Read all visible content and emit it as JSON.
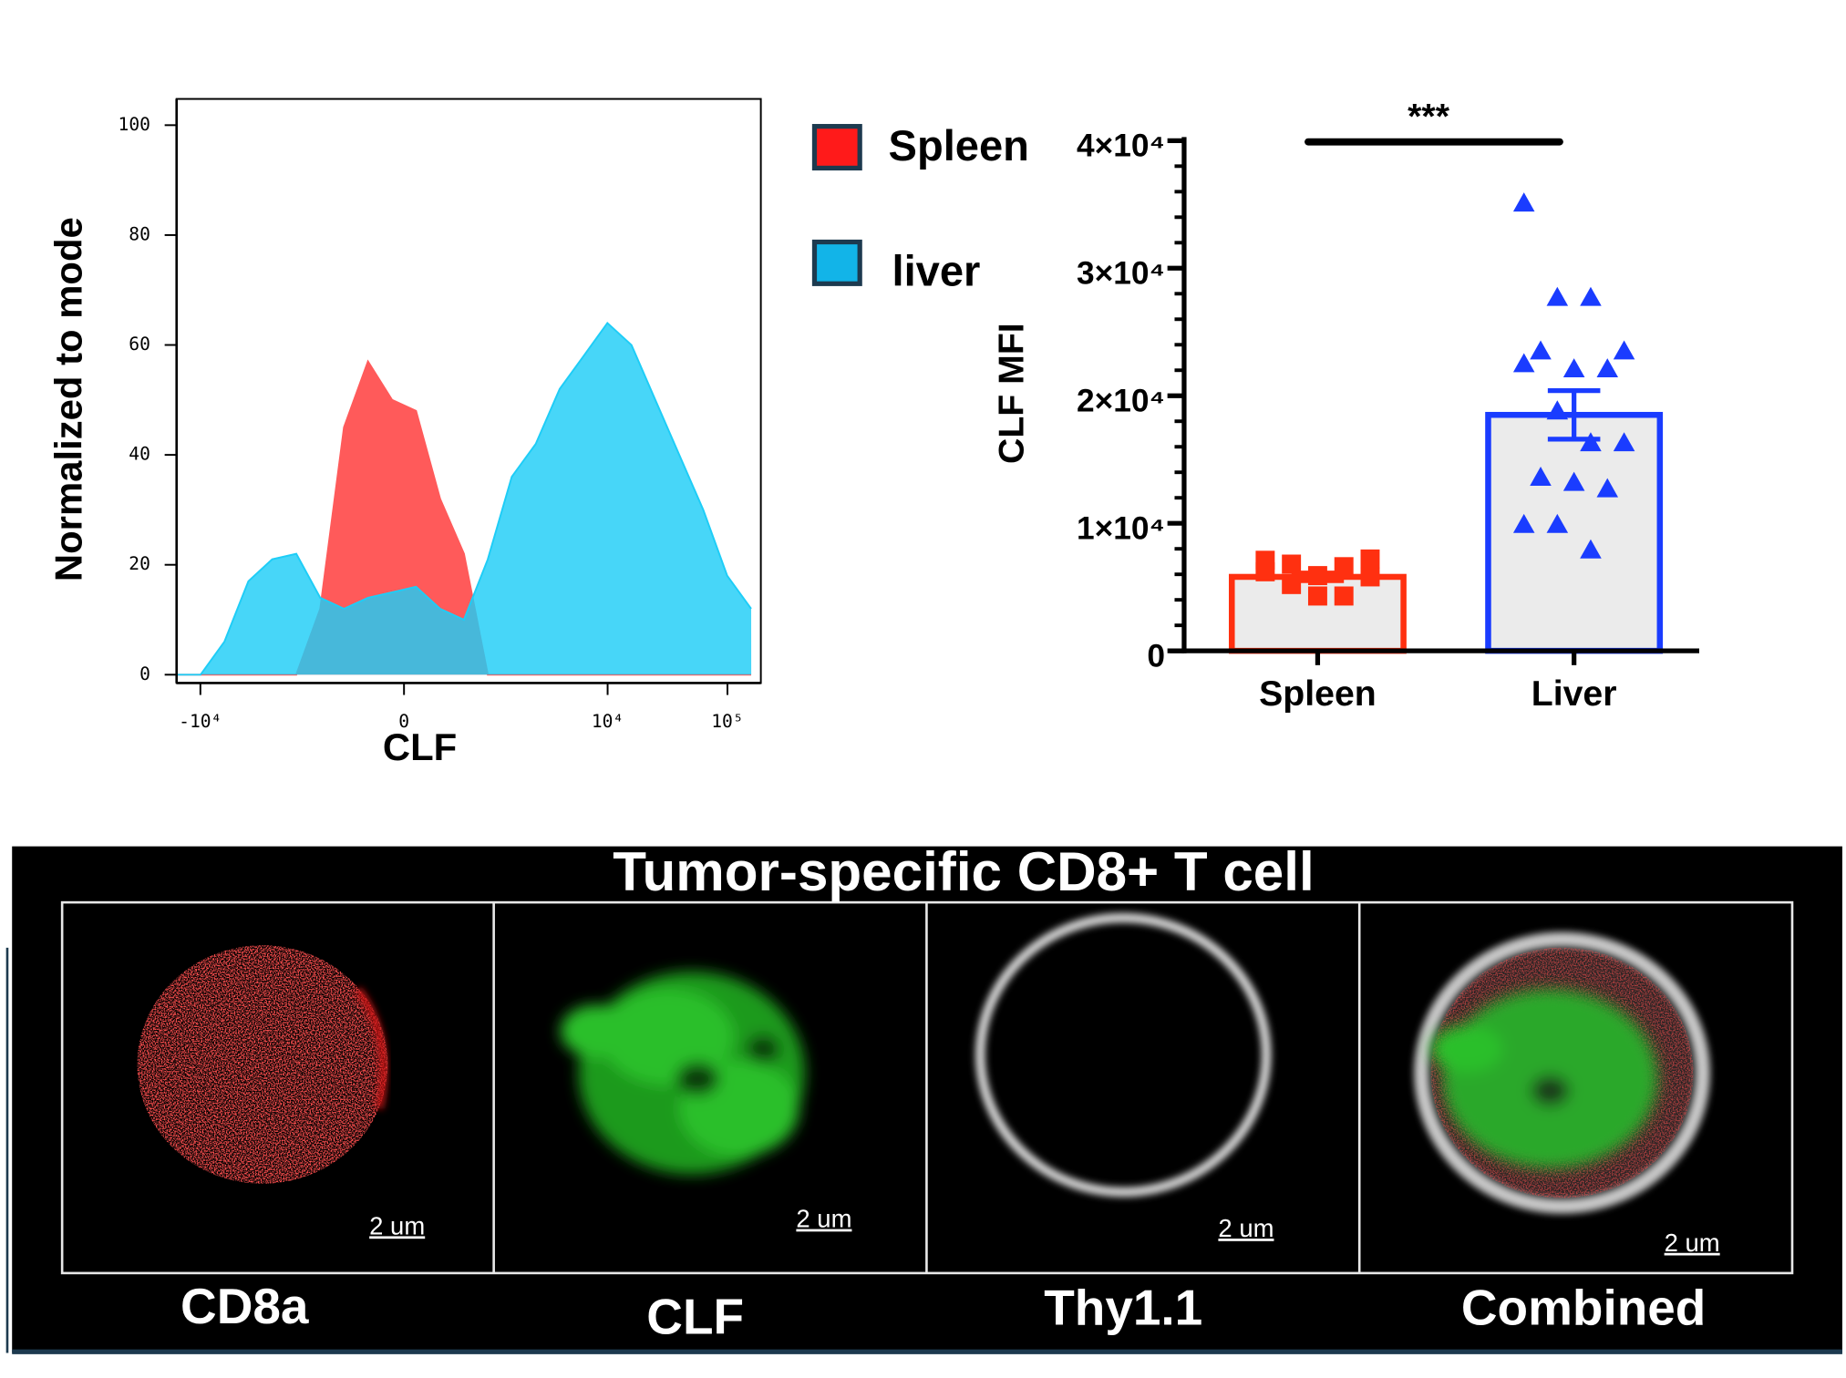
{
  "chart_data": [
    {
      "type": "density",
      "ylabel": "Normalized to mode",
      "xlabel": "CLF",
      "xscale": "asinh",
      "x": [
        -15800,
        -9960,
        -6300,
        -3970,
        -2500,
        -1560,
        -960,
        -570,
        -300,
        -93,
        93,
        300,
        570,
        960,
        1560,
        2500,
        3970,
        6300,
        9960,
        15800,
        25000,
        39600,
        62900,
        99600,
        158000
      ],
      "series": [
        {
          "name": "Spleen",
          "color": "#ff5a5a",
          "values": [
            0,
            0,
            0,
            0,
            0,
            0,
            12,
            45,
            57,
            50,
            48,
            32,
            22,
            0,
            0,
            0,
            0,
            0,
            0,
            0,
            0,
            0,
            0,
            0,
            0
          ]
        },
        {
          "name": "liver",
          "color": "#1ecdf7",
          "values": [
            0,
            0,
            6,
            17,
            21,
            22,
            14,
            12,
            14,
            15,
            16,
            12,
            10,
            21,
            36,
            42,
            52,
            58,
            64,
            60,
            50,
            40,
            30,
            18,
            12
          ]
        }
      ],
      "xlim": [
        -15800,
        190000
      ],
      "xticks": [
        {
          "value": -10000,
          "label": "-10⁴"
        },
        0,
        {
          "value": 10000,
          "label": "10⁴"
        },
        {
          "value": 100000,
          "label": "10⁵"
        }
      ],
      "ylim": [
        0,
        100
      ],
      "yticks": [
        0,
        20,
        40,
        60,
        80,
        100
      ]
    },
    {
      "type": "bar",
      "ylabel": "CLF MFI",
      "annotation": "***",
      "categories": [
        "Spleen",
        "Liver"
      ],
      "values": [
        5800,
        18500
      ],
      "errors": [
        300,
        1900
      ],
      "colors": [
        "#ff3010",
        "#1a3cff"
      ],
      "points": [
        [
          7100,
          6600,
          5200,
          7200,
          4300,
          6200,
          4300,
          6800,
          5800,
          5900
        ],
        [
          35100,
          27700,
          27700,
          23500,
          23500,
          22100,
          22100,
          22500,
          18800,
          16300,
          16300,
          13600,
          13200,
          12700,
          9900,
          9900,
          7900
        ]
      ],
      "ylim": [
        0,
        40000
      ],
      "yticks": [
        0,
        {
          "value": 10000,
          "label": "1×10⁴"
        },
        {
          "value": 20000,
          "label": "2×10⁴"
        },
        {
          "value": 30000,
          "label": "3×10⁴"
        },
        {
          "value": 40000,
          "label": "4×10⁴"
        }
      ]
    }
  ],
  "image_panel": {
    "title": "Tumor-specific  CD8+ T cell",
    "labels": [
      "CD8a",
      "CLF",
      "Thy1.1",
      "Combined"
    ],
    "scale_bar": "2 um"
  }
}
